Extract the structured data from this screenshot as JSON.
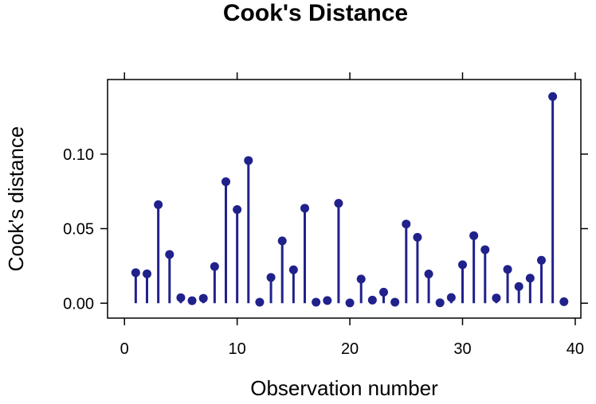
{
  "chart_data": {
    "type": "scatter",
    "style": "stem",
    "title": "Cook's Distance",
    "xlabel": "Observation number",
    "ylabel": "Cook's distance",
    "xlim": [
      -1.5,
      40.5
    ],
    "ylim": [
      -0.01,
      0.15
    ],
    "xticks": [
      0,
      10,
      20,
      30,
      40
    ],
    "xtick_labels": [
      "0",
      "10",
      "20",
      "30",
      "40"
    ],
    "yticks": [
      0.0,
      0.05,
      0.1
    ],
    "ytick_labels": [
      "0.00",
      "0.05",
      "0.10"
    ],
    "grid": false,
    "color": "#21218c",
    "x": [
      1,
      2,
      3,
      4,
      5,
      6,
      7,
      8,
      9,
      10,
      11,
      12,
      13,
      14,
      15,
      16,
      17,
      18,
      19,
      20,
      21,
      22,
      23,
      24,
      25,
      26,
      27,
      28,
      29,
      30,
      31,
      32,
      33,
      34,
      35,
      36,
      37,
      38,
      39
    ],
    "values": [
      0.0205,
      0.0197,
      0.0661,
      0.0327,
      0.0037,
      0.0017,
      0.0033,
      0.0246,
      0.0815,
      0.0628,
      0.0957,
      0.0007,
      0.0173,
      0.0418,
      0.0224,
      0.0637,
      0.0007,
      0.0018,
      0.067,
      0.0002,
      0.0162,
      0.0021,
      0.0074,
      0.0007,
      0.0531,
      0.0442,
      0.0196,
      0.0003,
      0.0038,
      0.0258,
      0.0453,
      0.0359,
      0.0035,
      0.0227,
      0.0112,
      0.0168,
      0.0288,
      0.1386,
      0.001
    ]
  }
}
